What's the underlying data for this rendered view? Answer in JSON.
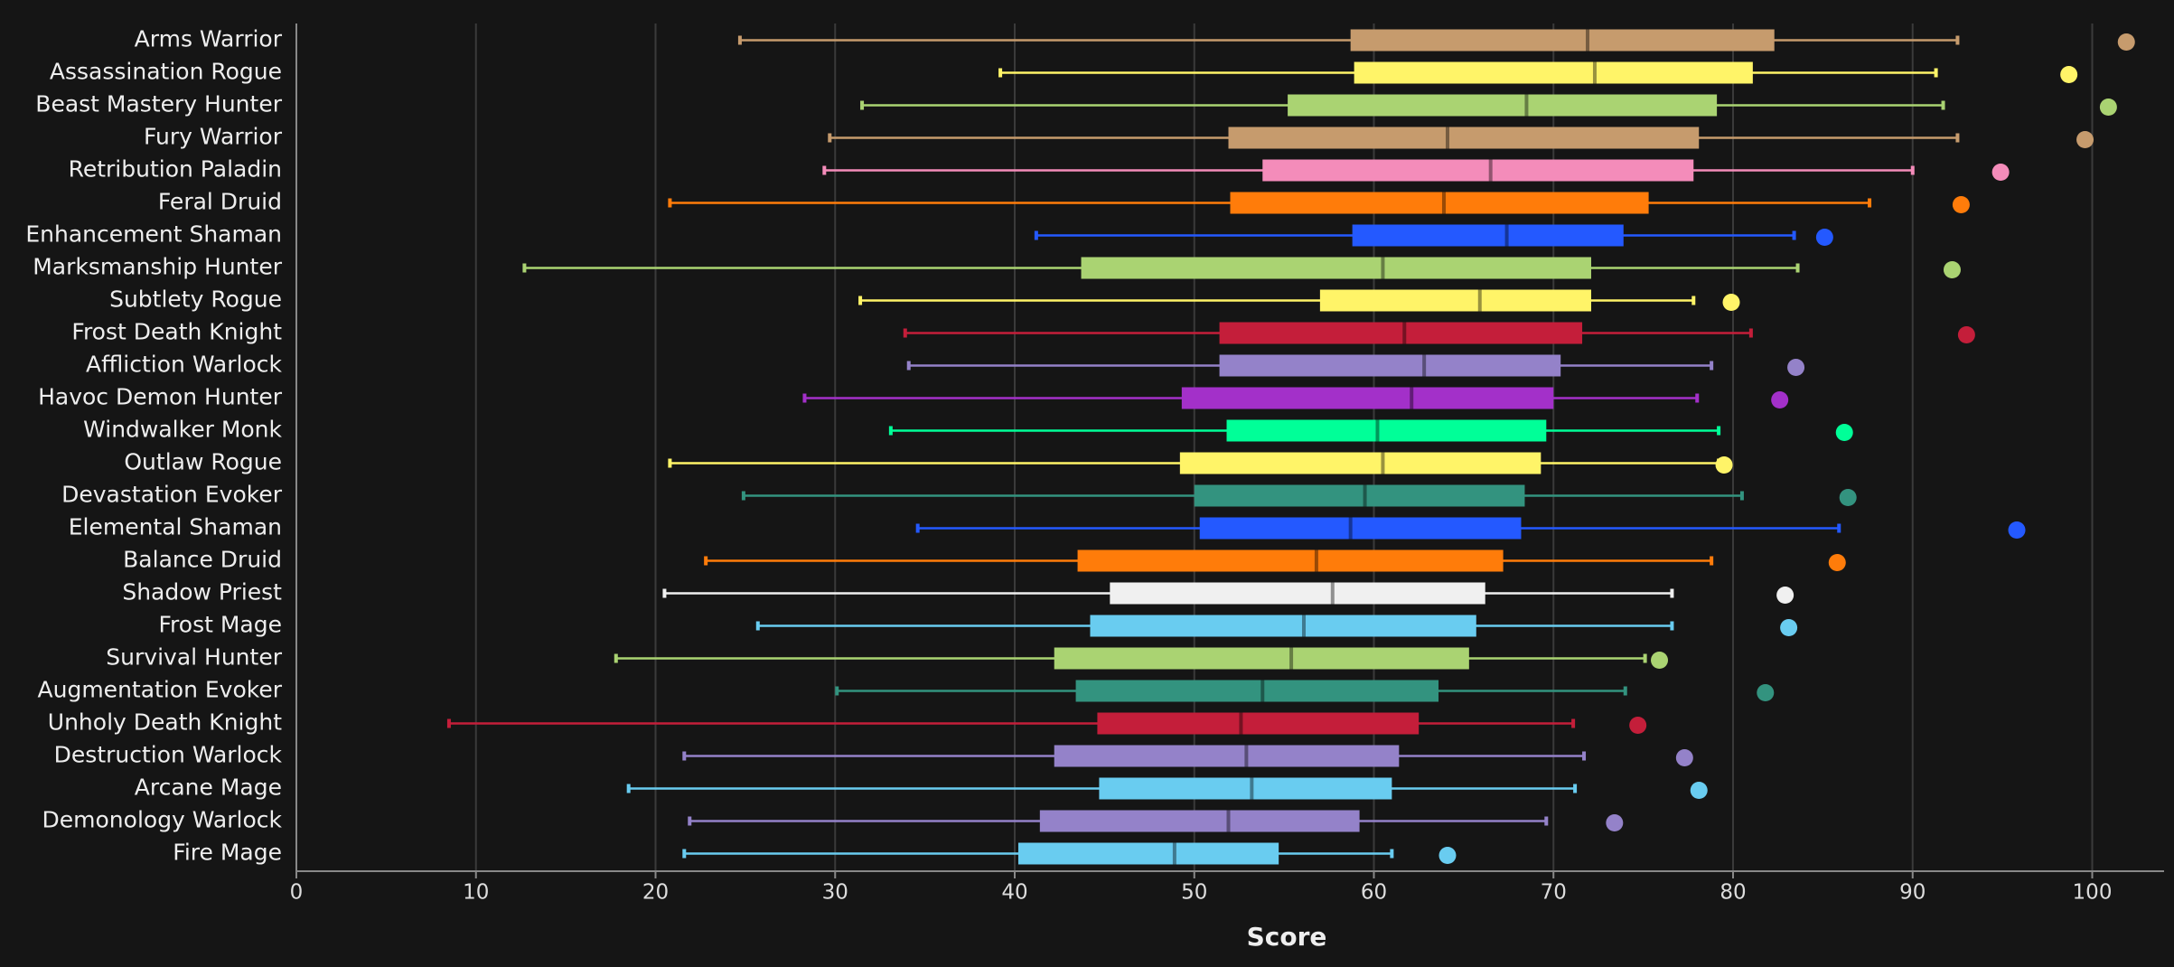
{
  "chart_data": {
    "type": "box",
    "x_label": "Score",
    "categories": [
      "Arms Warrior",
      "Assassination Rogue",
      "Beast Mastery Hunter",
      "Fury Warrior",
      "Retribution Paladin",
      "Feral Druid",
      "Enhancement Shaman",
      "Marksmanship Hunter",
      "Subtlety Rogue",
      "Frost Death Knight",
      "Affliction Warlock",
      "Havoc Demon Hunter",
      "Windwalker Monk",
      "Outlaw Rogue",
      "Devastation Evoker",
      "Elemental Shaman",
      "Balance Druid",
      "Shadow Priest",
      "Frost Mage",
      "Survival Hunter",
      "Augmentation Evoker",
      "Unholy Death Knight",
      "Destruction Warlock",
      "Arcane Mage",
      "Demonology Warlock",
      "Fire Mage"
    ],
    "colors": [
      "#c69b6d",
      "#fff468",
      "#aad372",
      "#c69b6d",
      "#f48cba",
      "#ff7c0a",
      "#2459ff",
      "#aad372",
      "#fff468",
      "#c41e3a",
      "#9482c9",
      "#a330c9",
      "#00ff98",
      "#fff468",
      "#33937f",
      "#2459ff",
      "#ff7c0a",
      "#f0f0f0",
      "#69ccf0",
      "#aad372",
      "#33937f",
      "#c41e3a",
      "#9482c9",
      "#69ccf0",
      "#9482c9",
      "#69ccf0"
    ],
    "whisker_low": [
      24.7,
      39.2,
      31.5,
      29.7,
      29.4,
      20.8,
      41.2,
      12.7,
      31.4,
      33.9,
      34.1,
      28.3,
      33.1,
      20.8,
      24.9,
      34.6,
      22.8,
      20.5,
      25.7,
      17.8,
      30.1,
      8.5,
      21.6,
      18.5,
      21.9,
      21.6
    ],
    "q1": [
      58.7,
      58.9,
      55.2,
      51.9,
      53.8,
      52.0,
      58.8,
      43.7,
      57.0,
      51.4,
      51.4,
      49.3,
      51.8,
      49.2,
      50.0,
      50.3,
      43.5,
      45.3,
      44.2,
      42.2,
      43.4,
      44.6,
      42.2,
      44.7,
      41.4,
      40.2
    ],
    "median": [
      71.9,
      72.3,
      68.5,
      64.1,
      66.5,
      63.9,
      67.4,
      60.5,
      65.9,
      61.7,
      62.8,
      62.1,
      60.2,
      60.5,
      59.5,
      58.7,
      56.8,
      57.7,
      56.1,
      55.4,
      53.8,
      52.6,
      52.9,
      53.2,
      51.9,
      48.9
    ],
    "q3": [
      82.3,
      81.1,
      79.1,
      78.1,
      77.8,
      75.3,
      73.9,
      72.1,
      72.1,
      71.6,
      70.4,
      70.0,
      69.6,
      69.3,
      68.4,
      68.2,
      67.2,
      66.2,
      65.7,
      65.3,
      63.6,
      62.5,
      61.4,
      61.0,
      59.2,
      54.7
    ],
    "whisker_high": [
      92.5,
      91.3,
      91.7,
      92.5,
      90.0,
      87.6,
      83.4,
      83.6,
      77.8,
      81.0,
      78.8,
      78.0,
      79.2,
      79.2,
      80.5,
      85.9,
      78.8,
      76.6,
      76.6,
      75.1,
      74.0,
      71.1,
      71.7,
      71.2,
      69.6,
      61.0
    ],
    "max_point": [
      101.9,
      98.7,
      100.9,
      99.6,
      94.9,
      92.7,
      85.1,
      92.2,
      79.9,
      93.0,
      83.5,
      82.6,
      86.2,
      79.5,
      86.4,
      95.8,
      85.8,
      82.9,
      83.1,
      75.9,
      81.8,
      74.7,
      77.3,
      78.1,
      73.4,
      64.1
    ],
    "xlim": [
      0,
      104
    ],
    "xticks": [
      0,
      10,
      20,
      30,
      40,
      50,
      60,
      70,
      80,
      90,
      100
    ],
    "grid": true
  }
}
